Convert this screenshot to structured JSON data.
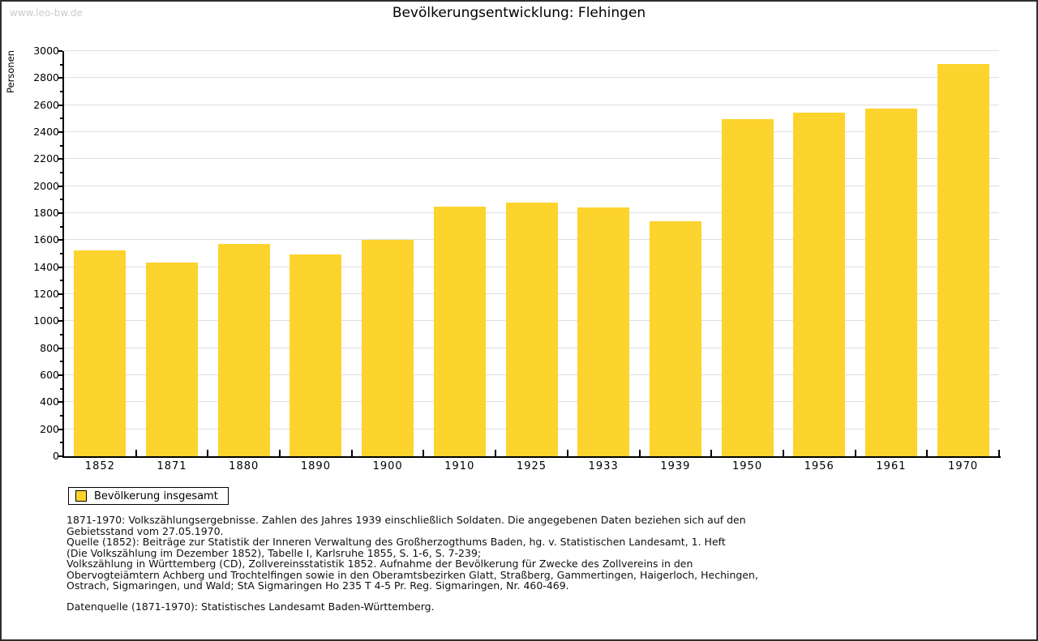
{
  "watermark": "www.leo-bw.de",
  "colors": {
    "bar": "#fdd32d",
    "grid": "#dedede",
    "axis": "#000000",
    "watermark": "#cccccc"
  },
  "chart_data": {
    "type": "bar",
    "title": "Bevölkerungsentwicklung: Flehingen",
    "ylabel": "Personen",
    "categories": [
      "1852",
      "1871",
      "1880",
      "1890",
      "1900",
      "1910",
      "1925",
      "1933",
      "1939",
      "1950",
      "1956",
      "1961",
      "1970"
    ],
    "values": [
      1525,
      1435,
      1570,
      1495,
      1600,
      1845,
      1875,
      1840,
      1740,
      2495,
      2545,
      2575,
      2905
    ],
    "ylim": [
      0,
      3000
    ],
    "ytick_step": 200,
    "yminor_step": 100,
    "grid": true,
    "legend": [
      "Bevölkerung insgesamt"
    ],
    "legend_position": "bottom-left",
    "bar_color": "#fdd32d"
  },
  "footnotes": {
    "lines": [
      "1871-1970: Volkszählungsergebnisse. Zahlen des Jahres 1939 einschließlich Soldaten. Die angegebenen Daten beziehen sich auf den",
      "Gebietsstand vom 27.05.1970.",
      "Quelle (1852): Beiträge zur Statistik der Inneren Verwaltung des Großherzogthums Baden, hg. v. Statistischen Landesamt, 1. Heft",
      "(Die Volkszählung im Dezember 1852), Tabelle I, Karlsruhe 1855, S. 1-6, S. 7-239;",
      "Volkszählung in Württemberg (CD), Zollvereinsstatistik 1852. Aufnahme der Bevölkerung für Zwecke des Zollvereins in den",
      "Obervogteiämtern Achberg und Trochtelfingen sowie in den Oberamtsbezirken Glatt, Straßberg, Gammertingen, Haigerloch, Hechingen,",
      "Ostrach, Sigmaringen, und Wald; StA Sigmaringen Ho 235 T 4-5 Pr. Reg. Sigmaringen, Nr. 460-469."
    ],
    "datasource": "Datenquelle (1871-1970): Statistisches Landesamt Baden-Württemberg."
  }
}
